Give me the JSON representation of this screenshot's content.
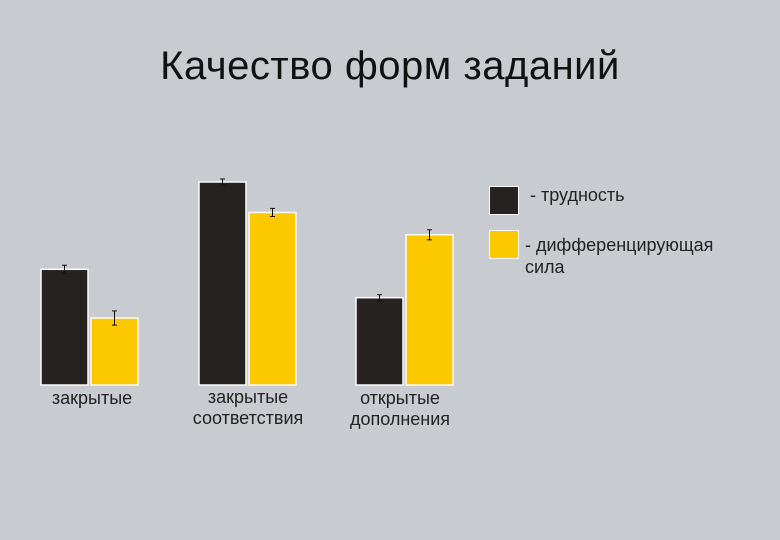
{
  "title": "Качество форм заданий",
  "legend": [
    {
      "label": "- трудность",
      "color": "#262220"
    },
    {
      "label": "- дифференцирующая\n   сила",
      "color": "#fcc800"
    }
  ],
  "chart_data": {
    "type": "bar",
    "title": "Качество форм заданий",
    "categories": [
      "закрытые",
      "закрытые\nсоответствия",
      "открытые\nдополнения"
    ],
    "series": [
      {
        "name": "- трудность",
        "color": "#262220",
        "values": [
          0.57,
          1.0,
          0.43
        ]
      },
      {
        "name": "- дифференцирующая сила",
        "color": "#fcc800",
        "values": [
          0.33,
          0.85,
          0.74
        ]
      }
    ],
    "error": [
      [
        0.02,
        0.015,
        0.015
      ],
      [
        0.035,
        0.02,
        0.025
      ]
    ],
    "ylim": [
      0,
      1.2
    ],
    "xlabel": "",
    "ylabel": "",
    "grid": false,
    "legend_position": "right",
    "error_bars": true
  }
}
